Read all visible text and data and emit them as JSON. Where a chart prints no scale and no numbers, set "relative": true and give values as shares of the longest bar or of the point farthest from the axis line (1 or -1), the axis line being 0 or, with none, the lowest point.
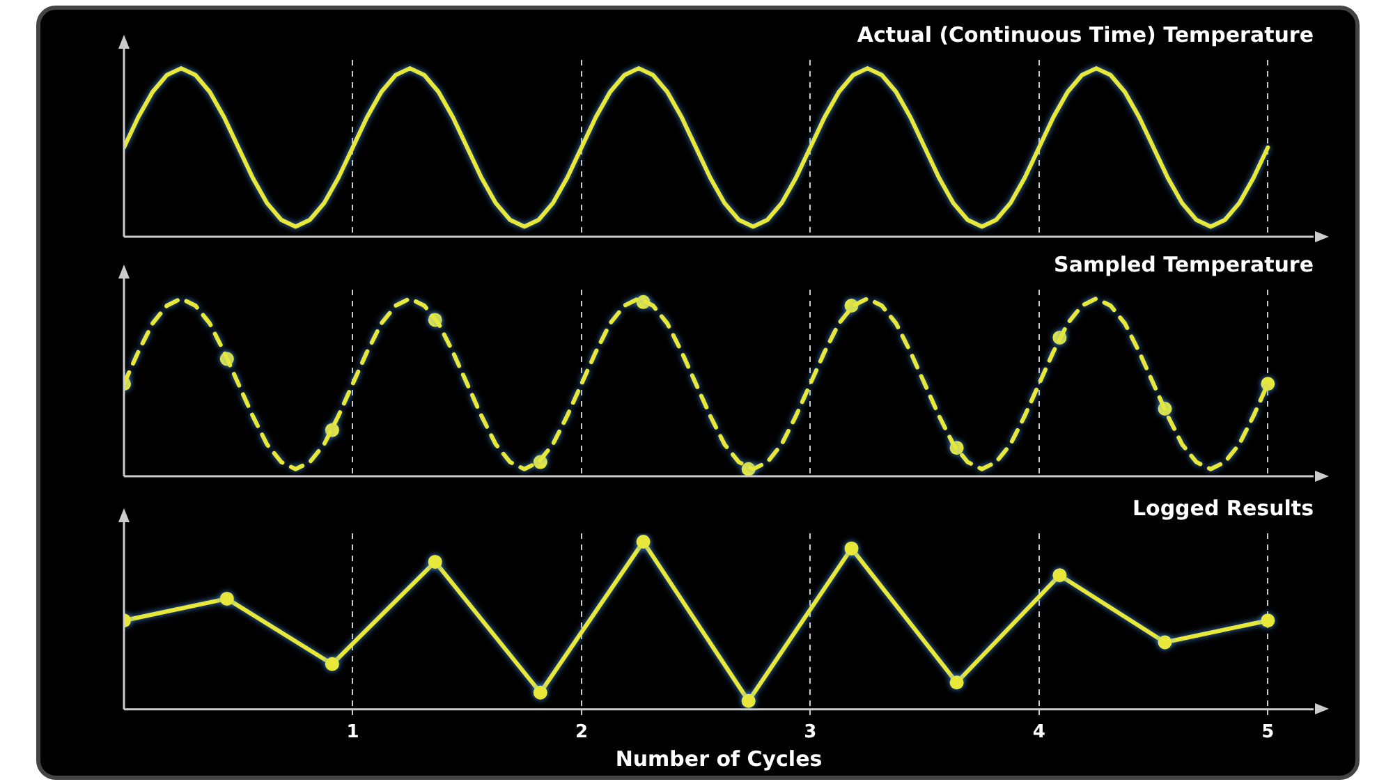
{
  "chart_data": [
    {
      "type": "line",
      "title": "Actual (Continuous Time) Temperature",
      "relative": true,
      "xlim": [
        0,
        5.2
      ],
      "xticks": [
        1,
        2,
        3,
        4,
        5
      ],
      "grid": "x",
      "tick_labels": false,
      "marker": "none",
      "line_style": "solid",
      "color": "#e8e83a",
      "x": [
        0,
        0.0625,
        0.125,
        0.1875,
        0.25,
        0.3125,
        0.375,
        0.4375,
        0.5,
        0.5625,
        0.625,
        0.6875,
        0.75,
        0.8125,
        0.875,
        0.9375,
        1,
        1.0625,
        1.125,
        1.1875,
        1.25,
        1.3125,
        1.375,
        1.4375,
        1.5,
        1.5625,
        1.625,
        1.6875,
        1.75,
        1.8125,
        1.875,
        1.9375,
        2,
        2.0625,
        2.125,
        2.1875,
        2.25,
        2.3125,
        2.375,
        2.4375,
        2.5,
        2.5625,
        2.625,
        2.6875,
        2.75,
        2.8125,
        2.875,
        2.9375,
        3,
        3.0625,
        3.125,
        3.1875,
        3.25,
        3.3125,
        3.375,
        3.4375,
        3.5,
        3.5625,
        3.625,
        3.6875,
        3.75,
        3.8125,
        3.875,
        3.9375,
        4,
        4.0625,
        4.125,
        4.1875,
        4.25,
        4.3125,
        4.375,
        4.4375,
        4.5,
        4.5625,
        4.625,
        4.6875,
        4.75,
        4.8125,
        4.875,
        4.9375,
        5
      ],
      "values": [
        0.53,
        0.71,
        0.86,
        0.96,
        1,
        0.96,
        0.86,
        0.71,
        0.53,
        0.35,
        0.2,
        0.1,
        0.06,
        0.1,
        0.2,
        0.35,
        0.53,
        0.71,
        0.86,
        0.96,
        1,
        0.96,
        0.86,
        0.71,
        0.53,
        0.35,
        0.2,
        0.1,
        0.06,
        0.1,
        0.2,
        0.35,
        0.53,
        0.71,
        0.86,
        0.96,
        1,
        0.96,
        0.86,
        0.71,
        0.53,
        0.35,
        0.2,
        0.1,
        0.06,
        0.1,
        0.2,
        0.35,
        0.53,
        0.71,
        0.86,
        0.96,
        1,
        0.96,
        0.86,
        0.71,
        0.53,
        0.35,
        0.2,
        0.1,
        0.06,
        0.1,
        0.2,
        0.35,
        0.53,
        0.71,
        0.86,
        0.96,
        1,
        0.96,
        0.86,
        0.71,
        0.53,
        0.35,
        0.2,
        0.1,
        0.06,
        0.1,
        0.2,
        0.35,
        0.53
      ]
    },
    {
      "type": "line",
      "title": "Sampled Temperature",
      "relative": true,
      "xlim": [
        0,
        5.2
      ],
      "xticks": [
        1,
        2,
        3,
        4,
        5
      ],
      "grid": "x",
      "tick_labels": false,
      "series": [
        {
          "type": "line",
          "color": "#e8e83a",
          "marker": "none",
          "line_style": "dashed",
          "x": [
            0,
            0.0625,
            0.125,
            0.1875,
            0.25,
            0.3125,
            0.375,
            0.4375,
            0.5,
            0.5625,
            0.625,
            0.6875,
            0.75,
            0.8125,
            0.875,
            0.9375,
            1,
            1.0625,
            1.125,
            1.1875,
            1.25,
            1.3125,
            1.375,
            1.4375,
            1.5,
            1.5625,
            1.625,
            1.6875,
            1.75,
            1.8125,
            1.875,
            1.9375,
            2,
            2.0625,
            2.125,
            2.1875,
            2.25,
            2.3125,
            2.375,
            2.4375,
            2.5,
            2.5625,
            2.625,
            2.6875,
            2.75,
            2.8125,
            2.875,
            2.9375,
            3,
            3.0625,
            3.125,
            3.1875,
            3.25,
            3.3125,
            3.375,
            3.4375,
            3.5,
            3.5625,
            3.625,
            3.6875,
            3.75,
            3.8125,
            3.875,
            3.9375,
            4,
            4.0625,
            4.125,
            4.1875,
            4.25,
            4.3125,
            4.375,
            4.4375,
            4.5,
            4.5625,
            4.625,
            4.6875,
            4.75,
            4.8125,
            4.875,
            4.9375,
            5
          ],
          "values": [
            0.52,
            0.7,
            0.86,
            0.96,
            1,
            0.96,
            0.86,
            0.7,
            0.52,
            0.34,
            0.18,
            0.08,
            0.04,
            0.08,
            0.18,
            0.34,
            0.52,
            0.7,
            0.86,
            0.96,
            1,
            0.96,
            0.86,
            0.7,
            0.52,
            0.34,
            0.18,
            0.08,
            0.04,
            0.08,
            0.18,
            0.34,
            0.52,
            0.7,
            0.86,
            0.96,
            1,
            0.96,
            0.86,
            0.7,
            0.52,
            0.34,
            0.18,
            0.08,
            0.04,
            0.08,
            0.18,
            0.34,
            0.52,
            0.7,
            0.86,
            0.96,
            1,
            0.96,
            0.86,
            0.7,
            0.52,
            0.34,
            0.18,
            0.08,
            0.04,
            0.08,
            0.18,
            0.34,
            0.52,
            0.7,
            0.86,
            0.96,
            1,
            0.96,
            0.86,
            0.7,
            0.52,
            0.34,
            0.18,
            0.08,
            0.04,
            0.08,
            0.18,
            0.34,
            0.52
          ]
        },
        {
          "type": "scatter",
          "color": "#e8e83a",
          "marker": "circle",
          "x": [
            0,
            0.45,
            0.91,
            1.36,
            1.82,
            2.27,
            2.73,
            3.18,
            3.64,
            4.09,
            4.55,
            5
          ],
          "values": [
            0.52,
            0.66,
            0.26,
            0.88,
            0.08,
            0.98,
            0.04,
            0.96,
            0.16,
            0.78,
            0.38,
            0.52
          ]
        }
      ]
    },
    {
      "type": "line",
      "title": "Logged Results",
      "xlabel": "Number of Cycles",
      "relative": true,
      "xlim": [
        0,
        5.2
      ],
      "xticks": [
        1,
        2,
        3,
        4,
        5
      ],
      "grid": "x",
      "tick_labels": "x",
      "marker": "circle",
      "line_style": "solid",
      "color": "#e8e83a",
      "x": [
        0,
        0.45,
        0.91,
        1.36,
        1.82,
        2.27,
        2.73,
        3.18,
        3.64,
        4.09,
        4.55,
        5
      ],
      "values": [
        0.53,
        0.66,
        0.27,
        0.88,
        0.1,
        1,
        0.05,
        0.96,
        0.16,
        0.8,
        0.4,
        0.53
      ]
    }
  ]
}
